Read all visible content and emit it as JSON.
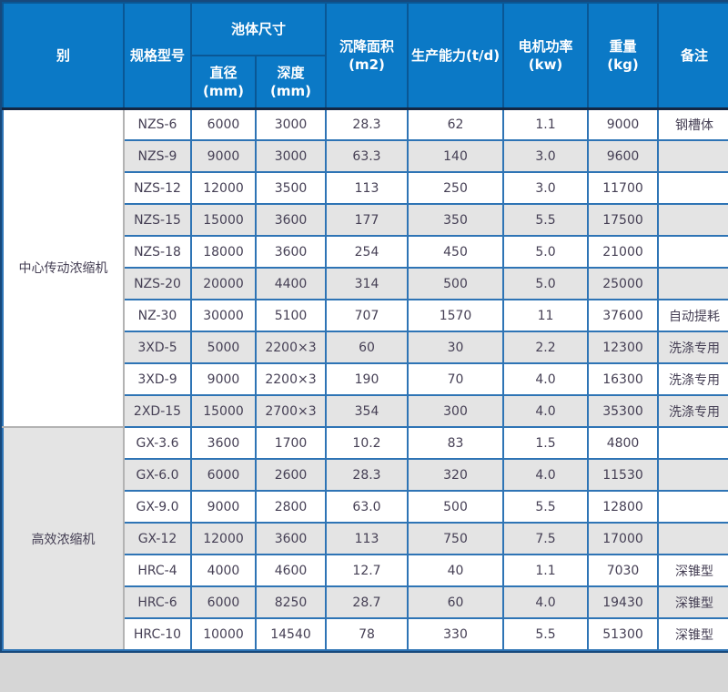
{
  "theme": {
    "page_bg": "#d6d6d6",
    "frame_border": "#17497c",
    "header_bg": "#0b79c6",
    "header_text": "#ffffff",
    "header_border": "#0a5795",
    "header_bottom": "#132744",
    "border_blue": "#2e74b5",
    "stripe_bg": "#e4e4e4",
    "cat_border": "#b3b3b3",
    "body_text": "#453f54"
  },
  "table": {
    "headers": {
      "category": "别",
      "model": "规格型号",
      "pool_size": "池体尺寸",
      "diameter": "直径\n(mm)",
      "depth": "深度(mm)",
      "settling_area": "沉降面积\n(m2)",
      "capacity": "生产能力(t/d)",
      "motor_power": "电机功率\n(kw)",
      "weight": "重量\n(kg)",
      "remarks": "备注"
    },
    "groups": [
      {
        "category": "中心传动浓缩机",
        "rows": [
          [
            "NZS-6",
            "6000",
            "3000",
            "28.3",
            "62",
            "1.1",
            "9000",
            "钢槽体"
          ],
          [
            "NZS-9",
            "9000",
            "3000",
            "63.3",
            "140",
            "3.0",
            "9600",
            ""
          ],
          [
            "NZS-12",
            "12000",
            "3500",
            "113",
            "250",
            "3.0",
            "11700",
            ""
          ],
          [
            "NZS-15",
            "15000",
            "3600",
            "177",
            "350",
            "5.5",
            "17500",
            ""
          ],
          [
            "NZS-18",
            "18000",
            "3600",
            "254",
            "450",
            "5.0",
            "21000",
            ""
          ],
          [
            "NZS-20",
            "20000",
            "4400",
            "314",
            "500",
            "5.0",
            "25000",
            ""
          ],
          [
            "NZ-30",
            "30000",
            "5100",
            "707",
            "1570",
            "11",
            "37600",
            "自动提耗"
          ],
          [
            "3XD-5",
            "5000",
            "2200×3",
            "60",
            "30",
            "2.2",
            "12300",
            "洗涤专用"
          ],
          [
            "3XD-9",
            "9000",
            "2200×3",
            "190",
            "70",
            "4.0",
            "16300",
            "洗涤专用"
          ],
          [
            "2XD-15",
            "15000",
            "2700×3",
            "354",
            "300",
            "4.0",
            "35300",
            "洗涤专用"
          ]
        ]
      },
      {
        "category": "高效浓缩机",
        "rows": [
          [
            "GX-3.6",
            "3600",
            "1700",
            "10.2",
            "83",
            "1.5",
            "4800",
            ""
          ],
          [
            "GX-6.0",
            "6000",
            "2600",
            "28.3",
            "320",
            "4.0",
            "11530",
            ""
          ],
          [
            "GX-9.0",
            "9000",
            "2800",
            "63.0",
            "500",
            "5.5",
            "12800",
            ""
          ],
          [
            "GX-12",
            "12000",
            "3600",
            "113",
            "750",
            "7.5",
            "17000",
            ""
          ],
          [
            "HRC-4",
            "4000",
            "4600",
            "12.7",
            "40",
            "1.1",
            "7030",
            "深锥型"
          ],
          [
            "HRC-6",
            "6000",
            "8250",
            "28.7",
            "60",
            "4.0",
            "19430",
            "深锥型"
          ],
          [
            "HRC-10",
            "10000",
            "14540",
            "78",
            "330",
            "5.5",
            "51300",
            "深锥型"
          ]
        ]
      }
    ]
  }
}
